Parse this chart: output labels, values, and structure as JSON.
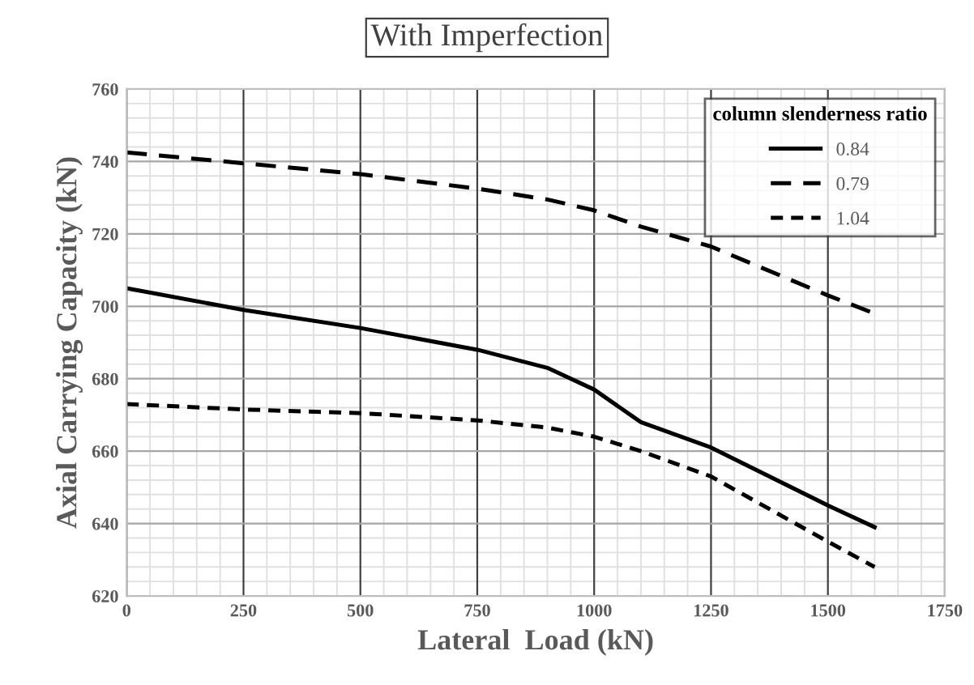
{
  "chart_data": {
    "type": "line",
    "title": "With Imperfection",
    "xlabel": "Lateral  Load (kN)",
    "ylabel": "Axial Carrying Capacity (kN)",
    "legend_title": "column slenderness ratio",
    "legend": "top right",
    "grid": true,
    "x": [
      0,
      250,
      500,
      750,
      900,
      1000,
      1100,
      1250,
      1500,
      1600
    ],
    "series": [
      {
        "name": "0.84",
        "color": "#000000",
        "line_style": "solid",
        "values": [
          705,
          699,
          694,
          688,
          683,
          677,
          668,
          661,
          645,
          639
        ]
      },
      {
        "name": "0.79",
        "color": "#000000",
        "line_style": "dashed",
        "values": [
          742.5,
          739.5,
          736.5,
          732.5,
          729.5,
          726.5,
          722,
          716.5,
          703,
          698
        ]
      },
      {
        "name": "1.04",
        "color": "#000000",
        "line_style": "dotted",
        "values": [
          673,
          671.5,
          670.5,
          668.5,
          666.5,
          664,
          660,
          653,
          635,
          628
        ]
      }
    ],
    "xlim": [
      0,
      1750
    ],
    "xticks": [
      0,
      250,
      500,
      750,
      1000,
      1250,
      1500,
      1750
    ],
    "ylim": [
      620,
      760
    ],
    "yticks": [
      620,
      640,
      660,
      680,
      700,
      720,
      740,
      760
    ]
  }
}
